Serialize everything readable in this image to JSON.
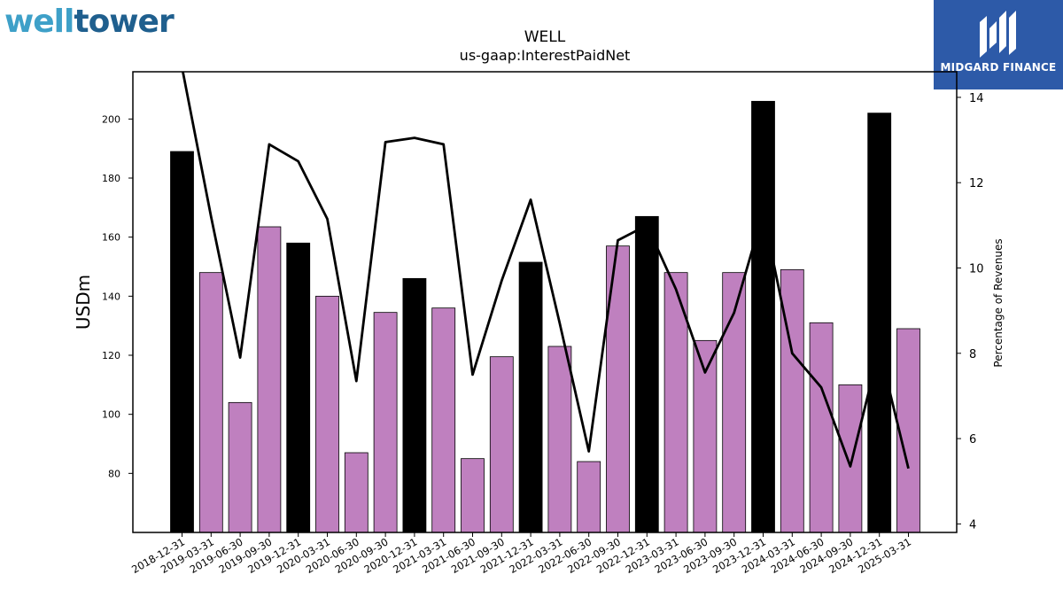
{
  "branding": {
    "left_logo_part1": "well",
    "left_logo_part2": "tower",
    "right_logo_text": "MIDGARD FINANCE"
  },
  "chart_data": {
    "type": "bar",
    "title": "WELL",
    "subtitle": "us-gaap:InterestPaidNet",
    "ylabel": "USDm",
    "y2label": "Percentage of Revenues",
    "ylim": [
      60,
      216
    ],
    "y2lim": [
      3.8,
      14.6
    ],
    "yticks": [
      80,
      100,
      120,
      140,
      160,
      180,
      200
    ],
    "y2ticks": [
      4,
      6,
      8,
      10,
      12,
      14
    ],
    "grid": false,
    "colors": {
      "q4_bar": "#000000",
      "bar": "#bf80bf",
      "line": "#000000"
    },
    "categories": [
      "2018-12-31",
      "2019-03-31",
      "2019-06-30",
      "2019-09-30",
      "2019-12-31",
      "2020-03-31",
      "2020-06-30",
      "2020-09-30",
      "2020-12-31",
      "2021-03-31",
      "2021-06-30",
      "2021-09-30",
      "2021-12-31",
      "2022-03-31",
      "2022-06-30",
      "2022-09-30",
      "2022-12-31",
      "2023-03-31",
      "2023-06-30",
      "2023-09-30",
      "2023-12-31",
      "2024-03-31",
      "2024-06-30",
      "2024-09-30",
      "2024-12-31",
      "2025-03-31"
    ],
    "series": [
      {
        "type": "bar",
        "values": [
          189,
          148,
          104,
          163.5,
          158,
          140,
          87,
          134.5,
          146,
          136,
          85,
          119.5,
          151.5,
          123,
          84,
          157,
          167,
          148,
          125,
          148,
          206,
          149,
          131,
          110,
          202,
          129
        ]
      },
      {
        "type": "line",
        "axis": "right",
        "values": [
          14.7,
          11.2,
          7.9,
          12.9,
          12.5,
          11.15,
          7.35,
          12.95,
          13.05,
          12.9,
          7.5,
          9.7,
          11.6,
          8.7,
          5.7,
          10.65,
          11.0,
          9.5,
          7.55,
          8.95,
          11.3,
          8.0,
          7.2,
          5.35,
          8.1,
          5.3
        ]
      }
    ]
  }
}
